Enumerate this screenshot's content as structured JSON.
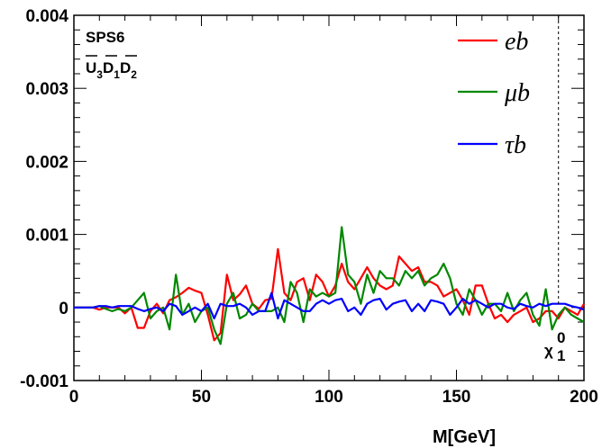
{
  "chart_data": {
    "type": "line",
    "title": "",
    "xlabel": "M[GeV]",
    "ylabel": "",
    "xlim": [
      0,
      200
    ],
    "ylim": [
      -0.001,
      0.004
    ],
    "xticks": [
      "0",
      "50",
      "100",
      "150",
      "200"
    ],
    "yticks": [
      "-0.001",
      "0",
      "0.001",
      "0.002",
      "0.003",
      "0.004"
    ],
    "grid": false,
    "legend_position": "top-right",
    "annotations": {
      "model": "SPS6",
      "coupling_parts": [
        "U",
        "3",
        "D",
        "1",
        "D",
        "2"
      ],
      "neutralino_marker": "χ",
      "neutralino_sup": "0",
      "neutralino_sub": "1",
      "neutralino_mass": 190
    },
    "x": [
      0,
      2.5,
      5,
      7.5,
      10,
      12.5,
      15,
      17.5,
      20,
      22.5,
      25,
      27.5,
      30,
      32.5,
      35,
      37.5,
      40,
      42.5,
      45,
      47.5,
      50,
      52.5,
      55,
      57.5,
      60,
      62.5,
      65,
      67.5,
      70,
      72.5,
      75,
      77.5,
      80,
      82.5,
      85,
      87.5,
      90,
      92.5,
      95,
      97.5,
      100,
      102.5,
      105,
      107.5,
      110,
      112.5,
      115,
      117.5,
      120,
      122.5,
      125,
      127.5,
      130,
      132.5,
      135,
      137.5,
      140,
      142.5,
      145,
      147.5,
      150,
      152.5,
      155,
      157.5,
      160,
      162.5,
      165,
      167.5,
      170,
      172.5,
      175,
      177.5,
      180,
      182.5,
      185,
      187.5,
      190,
      192.5,
      195,
      197.5,
      200
    ],
    "series": [
      {
        "name": "eb",
        "color": "#ff0000",
        "values": [
          0,
          0,
          0,
          0,
          -3e-05,
          0,
          0,
          0,
          -8e-05,
          0,
          -0.00028,
          -0.00028,
          -5e-05,
          5e-05,
          -8e-05,
          0.0001,
          0.00014,
          0.0002,
          0.00027,
          0.00023,
          0.0002,
          -0.0001,
          -0.00045,
          -0.00035,
          0.00045,
          0.0001,
          0.00018,
          0.0003,
          5e-05,
          -2e-05,
          0.0001,
          0.00012,
          0.0008,
          0.0002,
          0.0001,
          0.00035,
          0.0004,
          0.0001,
          0.00045,
          0.00035,
          0.00015,
          0.0003,
          0.0006,
          0.00035,
          0.00025,
          0.0004,
          0.00055,
          0.0004,
          0.0003,
          0.00025,
          0.0003,
          0.0007,
          0.0006,
          0.0005,
          0.00055,
          0.00035,
          0.00035,
          0.0003,
          0.00015,
          0.0002,
          0.00025,
          0.0001,
          -0.0001,
          0.0003,
          0.0003,
          5e-05,
          -0.00015,
          -0.0001,
          -0.0002,
          -0.0001,
          -5e-05,
          0,
          -0.0002,
          -0.00015,
          -5e-05,
          -5e-05,
          -0.00015,
          0,
          -5e-05,
          -0.0001,
          5e-05
        ]
      },
      {
        "name": "μb",
        "color": "#008800",
        "values": [
          0,
          0,
          0,
          0,
          2e-05,
          -2e-05,
          -5e-05,
          -2e-05,
          -5e-05,
          0,
          0.0001,
          0.0002,
          -0.00015,
          -5e-05,
          0,
          -0.0003,
          0.00045,
          -0.0001,
          5e-05,
          -0.0002,
          -5e-05,
          0,
          -0.0003,
          -0.0005,
          5e-05,
          0.0002,
          -0.00015,
          -0.0001,
          5e-05,
          -5e-05,
          -5e-05,
          -5e-05,
          0,
          -0.0002,
          0.00035,
          0.0002,
          -0.0002,
          0.00025,
          0.00015,
          0.0002,
          0.00015,
          0.0002,
          0.0011,
          0.00045,
          0.00035,
          5e-05,
          0.00045,
          0.0002,
          0.0005,
          0.0004,
          0.0004,
          0.0003,
          0.0005,
          0.0004,
          0.0005,
          0.0003,
          0.0004,
          0.00045,
          0.0006,
          0.0004,
          5e-05,
          -0.0001,
          0.00025,
          0.0001,
          -0.0001,
          5e-05,
          5e-05,
          -5e-05,
          0.0002,
          -5e-05,
          0.0001,
          0.0002,
          -0.0001,
          -0.00025,
          0.00025,
          -0.0003,
          -0.0001,
          0,
          -0.0001,
          -0.00015,
          -0.0002
        ]
      },
      {
        "name": "τb",
        "color": "#0000ff",
        "values": [
          0,
          0,
          0,
          0,
          2e-05,
          2e-05,
          0,
          2e-05,
          2e-05,
          2e-05,
          -2e-05,
          -5e-05,
          -2e-05,
          0,
          -5e-05,
          5e-05,
          2e-05,
          -0.0001,
          -5e-05,
          0,
          -5e-05,
          5e-05,
          -0.00015,
          5e-05,
          2e-05,
          2e-05,
          5e-05,
          0,
          -0.0001,
          -5e-05,
          -5e-05,
          0.0002,
          -0.00015,
          0.0001,
          5e-05,
          0,
          -5e-05,
          -5e-05,
          5e-05,
          0.0001,
          5e-05,
          0.0001,
          0.00012,
          -5e-05,
          0,
          -0.0001,
          5e-05,
          0.0001,
          0.00012,
          -3e-05,
          5e-05,
          8e-05,
          0.0001,
          -5e-05,
          5e-05,
          -5e-05,
          0.0001,
          8e-05,
          5e-05,
          -0.0001,
          0,
          0.00012,
          5e-05,
          0.0001,
          5e-05,
          0,
          5e-05,
          5e-05,
          0,
          -2e-05,
          5e-05,
          2e-05,
          0,
          5e-05,
          2e-05,
          5e-05,
          5e-05,
          5e-05,
          2e-05,
          0,
          -3e-05
        ]
      }
    ]
  }
}
